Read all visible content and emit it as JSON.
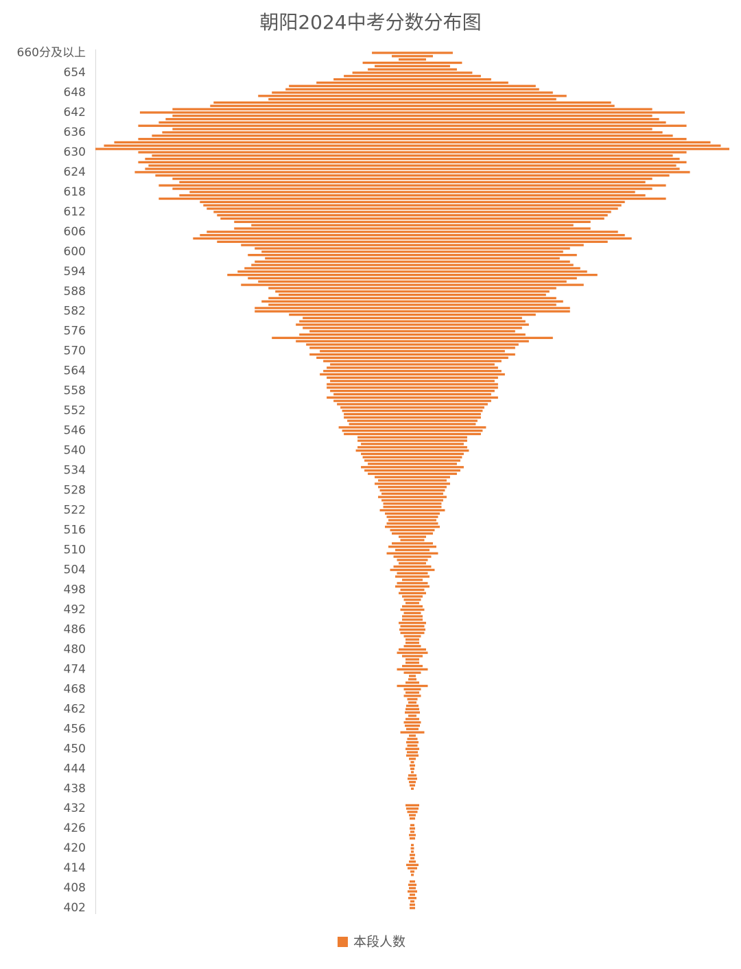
{
  "chart_data": {
    "type": "bar",
    "orientation": "horizontal-centered",
    "title": "朝阳2024中考分数分布图",
    "categories": [
      "660分及以上",
      null,
      null,
      null,
      null,
      null,
      "654",
      null,
      null,
      null,
      null,
      null,
      "648",
      null,
      null,
      null,
      null,
      null,
      "642",
      null,
      null,
      null,
      null,
      null,
      "636",
      null,
      null,
      null,
      null,
      null,
      "630",
      null,
      null,
      null,
      null,
      null,
      "624",
      null,
      null,
      null,
      null,
      null,
      "618",
      null,
      null,
      null,
      null,
      null,
      "612",
      null,
      null,
      null,
      null,
      null,
      "606",
      null,
      null,
      null,
      null,
      null,
      "600",
      null,
      null,
      null,
      null,
      null,
      "594",
      null,
      null,
      null,
      null,
      null,
      "588",
      null,
      null,
      null,
      null,
      null,
      "582",
      null,
      null,
      null,
      null,
      null,
      "576",
      null,
      null,
      null,
      null,
      null,
      "570",
      null,
      null,
      null,
      null,
      null,
      "564",
      null,
      null,
      null,
      null,
      null,
      "558",
      null,
      null,
      null,
      null,
      null,
      "552",
      null,
      null,
      null,
      null,
      null,
      "546",
      null,
      null,
      null,
      null,
      null,
      "540",
      null,
      null,
      null,
      null,
      null,
      "534",
      null,
      null,
      null,
      null,
      null,
      "528",
      null,
      null,
      null,
      null,
      null,
      "522",
      null,
      null,
      null,
      null,
      null,
      "516",
      null,
      null,
      null,
      null,
      null,
      "510",
      null,
      null,
      null,
      null,
      null,
      "504",
      null,
      null,
      null,
      null,
      null,
      "498",
      null,
      null,
      null,
      null,
      null,
      "492",
      null,
      null,
      null,
      null,
      null,
      "486",
      null,
      null,
      null,
      null,
      null,
      "480",
      null,
      null,
      null,
      null,
      null,
      "474",
      null,
      null,
      null,
      null,
      null,
      "468",
      null,
      null,
      null,
      null,
      null,
      "462",
      null,
      null,
      null,
      null,
      null,
      "456",
      null,
      null,
      null,
      null,
      null,
      "450",
      null,
      null,
      null,
      null,
      null,
      "444",
      null,
      null,
      null,
      null,
      null,
      "438",
      null,
      null,
      null,
      null,
      null,
      "432",
      null,
      null,
      null,
      null,
      null,
      "426",
      null,
      null,
      null,
      null,
      null,
      "420",
      null,
      null,
      null,
      null,
      null,
      "414",
      null,
      null,
      null,
      null,
      null,
      "408",
      null,
      null,
      null,
      null,
      null,
      "402"
    ],
    "series": [
      {
        "name": "本段人数",
        "color": "#ed7d31",
        "values": [
          118,
          60,
          40,
          145,
          110,
          130,
          175,
          200,
          230,
          280,
          360,
          370,
          410,
          450,
          420,
          580,
          590,
          700,
          795,
          700,
          720,
          740,
          800,
          700,
          730,
          760,
          800,
          870,
          900,
          925,
          800,
          760,
          780,
          800,
          770,
          780,
          810,
          750,
          700,
          680,
          740,
          700,
          650,
          680,
          740,
          620,
          610,
          600,
          580,
          570,
          560,
          520,
          470,
          520,
          600,
          620,
          640,
          570,
          500,
          460,
          440,
          480,
          430,
          460,
          470,
          490,
          510,
          540,
          480,
          450,
          500,
          420,
          400,
          390,
          420,
          440,
          420,
          460,
          460,
          360,
          320,
          330,
          340,
          320,
          300,
          330,
          410,
          340,
          310,
          300,
          270,
          300,
          280,
          260,
          240,
          250,
          260,
          270,
          250,
          240,
          250,
          250,
          240,
          230,
          250,
          230,
          220,
          210,
          205,
          200,
          200,
          190,
          185,
          215,
          205,
          200,
          160,
          160,
          150,
          160,
          165,
          150,
          145,
          140,
          130,
          150,
          140,
          130,
          110,
          100,
          110,
          100,
          95,
          90,
          100,
          90,
          85,
          85,
          95,
          80,
          75,
          70,
          75,
          80,
          65,
          60,
          40,
          35,
          60,
          70,
          50,
          75,
          55,
          45,
          40,
          55,
          65,
          45,
          50,
          30,
          45,
          50,
          35,
          40,
          30,
          25,
          20,
          30,
          35,
          25,
          30,
          30,
          40,
          35,
          38,
          35,
          25,
          20,
          20,
          25,
          40,
          45,
          30,
          20,
          20,
          30,
          45,
          25,
          10,
          12,
          20,
          45,
          25,
          20,
          25,
          15,
          12,
          18,
          20,
          22,
          12,
          20,
          25,
          22,
          18,
          35,
          10,
          15,
          18,
          15,
          20,
          16,
          18,
          10,
          5,
          8,
          6,
          4,
          12,
          14,
          10,
          8,
          4,
          0,
          0,
          0,
          0,
          20,
          18,
          15,
          10,
          8,
          0,
          6,
          8,
          6,
          10,
          8,
          0,
          4,
          5,
          4,
          8,
          6,
          10,
          18,
          14,
          6,
          4,
          0,
          8,
          12,
          10,
          14,
          8,
          12,
          6,
          8,
          8
        ]
      }
    ],
    "legend": "bottom"
  }
}
